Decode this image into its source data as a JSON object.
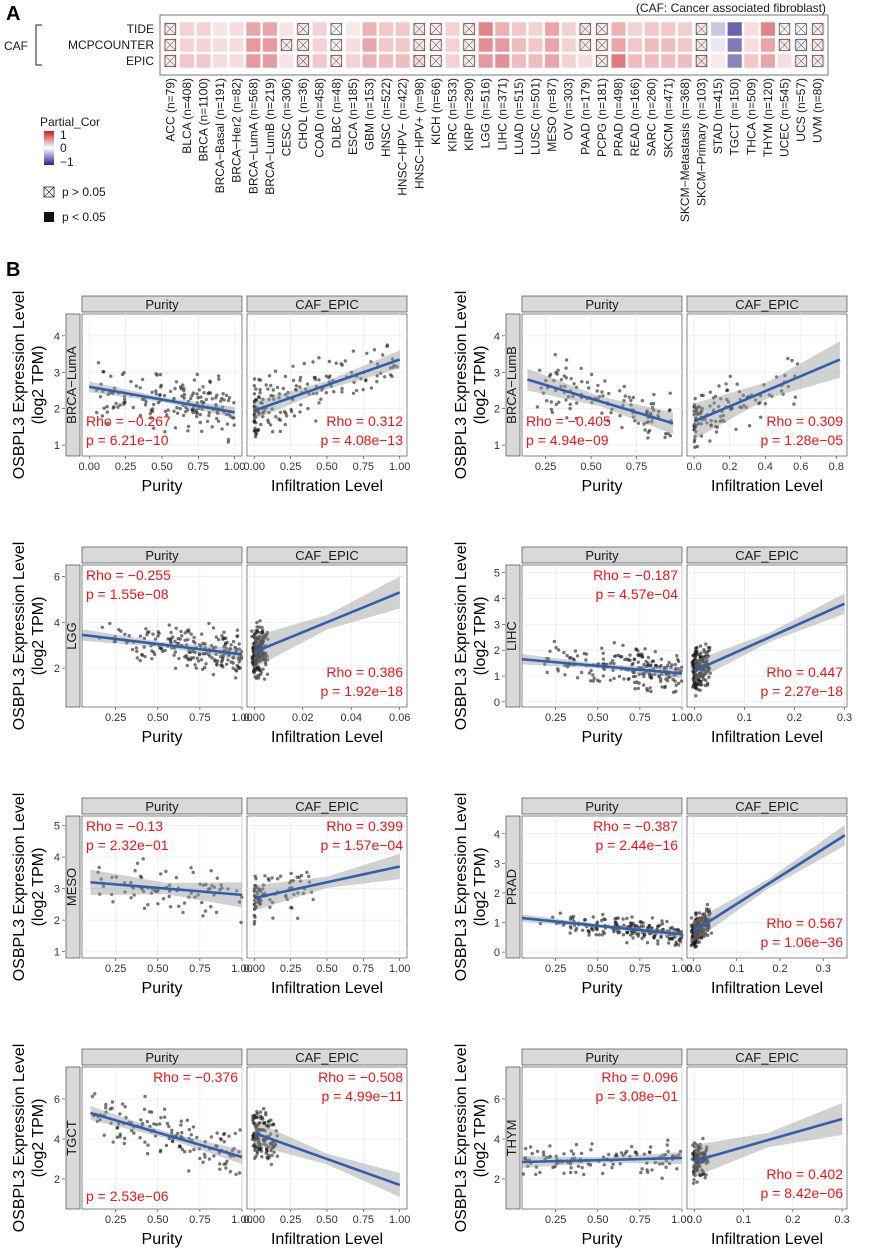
{
  "panel_labels": {
    "a": "A",
    "b": "B"
  },
  "chart_data": [
    {
      "type": "heatmap",
      "panel": "A",
      "note": "(CAF: Cancer associated fibroblast)",
      "group_label": "CAF",
      "rows": [
        "TIDE",
        "MCPCOUNTER",
        "EPIC"
      ],
      "columns": [
        "ACC (n=79)",
        "BLCA (n=408)",
        "BRCA (n=1100)",
        "BRCA−Basal (n=191)",
        "BRCA−Her2 (n=82)",
        "BRCA−LumA (n=568)",
        "BRCA−LumB (n=219)",
        "CESC (n=306)",
        "CHOL (n=36)",
        "COAD (n=458)",
        "DLBC (n=48)",
        "ESCA (n=185)",
        "GBM (n=153)",
        "HNSC (n=522)",
        "HNSC−HPV− (n=422)",
        "HNSC−HPV+ (n=98)",
        "KICH (n=66)",
        "KIRC (n=533)",
        "KIRP (n=290)",
        "LGG (n=516)",
        "LIHC (n=371)",
        "LUAD (n=515)",
        "LUSC (n=501)",
        "MESO (n=87)",
        "OV (n=303)",
        "PAAD (n=179)",
        "PCPG (n=181)",
        "PRAD (n=498)",
        "READ (n=166)",
        "SARC (n=260)",
        "SKCM (n=471)",
        "SKCM−Metastasis (n=368)",
        "SKCM−Primary (n=103)",
        "STAD (n=415)",
        "TGCT (n=150)",
        "THCA (n=509)",
        "THYM (n=120)",
        "UCEC (n=545)",
        "UCS (n=57)",
        "UVM (n=80)"
      ],
      "values": [
        [
          0.1,
          0.2,
          0.2,
          0.12,
          0.15,
          0.4,
          0.4,
          0.12,
          0.1,
          0.2,
          -0.05,
          0.1,
          0.35,
          0.25,
          0.25,
          0.1,
          0.1,
          0.2,
          0.1,
          0.55,
          0.35,
          0.25,
          0.2,
          0.4,
          0.2,
          0.1,
          0.1,
          0.35,
          0.2,
          0.25,
          0.25,
          0.22,
          0.1,
          -0.25,
          -0.7,
          0.15,
          0.55,
          0.05,
          -0.05,
          0.1
        ],
        [
          0.1,
          0.2,
          0.2,
          0.15,
          0.15,
          0.45,
          0.45,
          0.1,
          0.1,
          0.2,
          0.05,
          0.15,
          0.4,
          0.25,
          0.25,
          0.1,
          0.1,
          0.2,
          0.1,
          0.5,
          0.45,
          0.3,
          0.25,
          0.4,
          0.2,
          0.1,
          0.1,
          0.4,
          0.25,
          0.3,
          0.3,
          0.25,
          0.1,
          -0.1,
          -0.6,
          0.15,
          0.4,
          0.1,
          -0.1,
          0.1
        ],
        [
          0.1,
          0.25,
          0.25,
          0.15,
          0.15,
          0.45,
          0.45,
          0.12,
          0.15,
          0.25,
          0.1,
          0.2,
          0.35,
          0.3,
          0.3,
          0.15,
          0.1,
          0.2,
          0.1,
          0.45,
          0.5,
          0.3,
          0.3,
          0.4,
          0.2,
          0.15,
          0.1,
          0.6,
          0.3,
          0.3,
          0.3,
          0.3,
          0.15,
          0.1,
          -0.55,
          0.25,
          0.4,
          0.15,
          0.1,
          0.1
        ]
      ],
      "not_significant": [
        [
          true,
          false,
          false,
          false,
          false,
          false,
          false,
          false,
          true,
          false,
          true,
          false,
          false,
          false,
          false,
          true,
          true,
          false,
          true,
          false,
          false,
          false,
          false,
          false,
          false,
          true,
          true,
          false,
          false,
          false,
          false,
          false,
          true,
          false,
          false,
          false,
          false,
          true,
          true,
          true
        ],
        [
          true,
          false,
          false,
          false,
          false,
          false,
          false,
          true,
          true,
          false,
          true,
          false,
          false,
          false,
          false,
          true,
          true,
          false,
          true,
          false,
          false,
          false,
          false,
          false,
          false,
          true,
          true,
          false,
          false,
          false,
          false,
          false,
          true,
          false,
          false,
          false,
          false,
          true,
          true,
          true
        ],
        [
          true,
          false,
          false,
          false,
          false,
          false,
          false,
          false,
          true,
          false,
          true,
          false,
          false,
          false,
          false,
          true,
          true,
          false,
          true,
          false,
          false,
          false,
          false,
          false,
          false,
          false,
          true,
          false,
          false,
          false,
          false,
          false,
          true,
          false,
          false,
          false,
          false,
          false,
          true,
          true
        ]
      ],
      "legend": {
        "title": "Partial_Cor",
        "max": "1",
        "mid": "0",
        "min": "−1",
        "ns": "p > 0.05",
        "sig": "p < 0.05"
      },
      "colors": {
        "positive": "#c81f27",
        "negative": "#2a2187",
        "neutral": "#ffffff",
        "outline": "#222222"
      }
    },
    {
      "type": "scatter",
      "panel": "B",
      "cancer": "BRCA−LumA",
      "ylabel": [
        "OSBPL3 Expression Level",
        "(log2 TPM)"
      ],
      "yticks": [
        "1",
        "2",
        "3",
        "4"
      ],
      "ylim": [
        0.7,
        4.6
      ],
      "facets": [
        {
          "strip": "Purity",
          "xlabel": "Purity",
          "xticks": [
            "0.00",
            "0.25",
            "0.50",
            "0.75",
            "1.00"
          ],
          "xlim": [
            -0.05,
            1.05
          ],
          "rho": "Rho = −0.267",
          "p": "p = 6.21e−10",
          "pos": "bl",
          "fit": [
            [
              0.0,
              2.6
            ],
            [
              1.0,
              1.9
            ]
          ],
          "band": 0.15,
          "dist": {
            "kind": "uniform",
            "lo": 0.05,
            "hi": 1.0,
            "ymin": 0.9,
            "ymax": 4.2,
            "n": 170
          }
        },
        {
          "strip": "CAF_EPIC",
          "xlabel": "Infiltration Level",
          "xticks": [
            "0.00",
            "0.25",
            "0.50",
            "0.75",
            "1.00"
          ],
          "xlim": [
            -0.05,
            1.05
          ],
          "rho": "Rho = 0.312",
          "p": "p = 4.08e−13",
          "pos": "br",
          "fit": [
            [
              0.0,
              1.95
            ],
            [
              1.0,
              3.35
            ]
          ],
          "band": 0.25,
          "dist": {
            "kind": "skew",
            "lo": 0.0,
            "hi": 1.0,
            "ymin": 0.9,
            "ymax": 4.2,
            "n": 170
          }
        }
      ]
    },
    {
      "type": "scatter",
      "panel": "B",
      "cancer": "BRCA−LumB",
      "ylabel": [
        "OSBPL3 Expression Level",
        "(log2 TPM)"
      ],
      "yticks": [
        "1",
        "2",
        "3",
        "4"
      ],
      "ylim": [
        0.7,
        4.6
      ],
      "facets": [
        {
          "strip": "Purity",
          "xlabel": "Purity",
          "xticks": [
            "0.25",
            "0.50",
            "0.75"
          ],
          "xlim": [
            0.12,
            1.0
          ],
          "rho": "Rho = −0.405",
          "p": "p = 4.94e−09",
          "pos": "bl",
          "fit": [
            [
              0.15,
              2.8
            ],
            [
              0.95,
              1.6
            ]
          ],
          "band": 0.3,
          "dist": {
            "kind": "uniform",
            "lo": 0.2,
            "hi": 0.95,
            "ymin": 0.9,
            "ymax": 4.2,
            "n": 120
          }
        },
        {
          "strip": "CAF_EPIC",
          "xlabel": "Infiltration Level",
          "xticks": [
            "0.0",
            "0.2",
            "0.4",
            "0.6",
            "0.8"
          ],
          "xlim": [
            -0.04,
            0.86
          ],
          "rho": "Rho = 0.309",
          "p": "p = 1.28e−05",
          "pos": "br",
          "fit": [
            [
              0.0,
              1.65
            ],
            [
              0.82,
              3.35
            ]
          ],
          "band": 0.5,
          "dist": {
            "kind": "skew",
            "lo": 0.0,
            "hi": 0.6,
            "ymin": 0.9,
            "ymax": 4.2,
            "n": 120
          }
        }
      ]
    },
    {
      "type": "scatter",
      "panel": "B",
      "cancer": "LGG",
      "ylabel": [
        "OSBPL3 Expression Level",
        "(log2 TPM)"
      ],
      "yticks": [
        "2",
        "4",
        "6"
      ],
      "ylim": [
        0.3,
        6.5
      ],
      "facets": [
        {
          "strip": "Purity",
          "xlabel": "Purity",
          "xticks": [
            "0.25",
            "0.50",
            "0.75",
            "1.00"
          ],
          "xlim": [
            0.05,
            1.0
          ],
          "rho": "Rho = −0.255",
          "p": "p = 1.55e−08",
          "pos": "tl",
          "fit": [
            [
              0.05,
              3.45
            ],
            [
              1.0,
              2.6
            ]
          ],
          "band": 0.25,
          "dist": {
            "kind": "right",
            "lo": 0.1,
            "hi": 1.0,
            "ymin": 1.0,
            "ymax": 5.0,
            "n": 200
          }
        },
        {
          "strip": "CAF_EPIC",
          "xlabel": "Infiltration Level",
          "xticks": [
            "0.00",
            "0.02",
            "0.04",
            "0.06"
          ],
          "xlim": [
            -0.003,
            0.063
          ],
          "rho": "Rho = 0.386",
          "p": "p = 1.92e−18",
          "pos": "br",
          "fit": [
            [
              0.0,
              2.7
            ],
            [
              0.06,
              5.3
            ]
          ],
          "band": 0.7,
          "dist": {
            "kind": "zero",
            "lo": 0.0,
            "hi": 0.005,
            "ymin": 0.5,
            "ymax": 5.5,
            "n": 200
          }
        }
      ]
    },
    {
      "type": "scatter",
      "panel": "B",
      "cancer": "LIHC",
      "ylabel": [
        "OSBPL3 Expression Level",
        "(log2 TPM)"
      ],
      "yticks": [
        "0",
        "1",
        "2",
        "3",
        "4",
        "5"
      ],
      "ylim": [
        -0.2,
        5.3
      ],
      "facets": [
        {
          "strip": "Purity",
          "xlabel": "Purity",
          "xticks": [
            "0.25",
            "0.50",
            "0.75",
            "1.00"
          ],
          "xlim": [
            0.05,
            1.0
          ],
          "rho": "Rho = −0.187",
          "p": "p = 4.57e−04",
          "pos": "tr",
          "fit": [
            [
              0.05,
              1.65
            ],
            [
              1.0,
              1.1
            ]
          ],
          "band": 0.2,
          "dist": {
            "kind": "right",
            "lo": 0.1,
            "hi": 1.0,
            "ymin": 0.0,
            "ymax": 3.5,
            "n": 200
          }
        },
        {
          "strip": "CAF_EPIC",
          "xlabel": "Infiltration Level",
          "xticks": [
            "0.0",
            "0.1",
            "0.2",
            "0.3"
          ],
          "xlim": [
            -0.015,
            0.305
          ],
          "rho": "Rho = 0.447",
          "p": "p = 2.27e−18",
          "pos": "br",
          "fit": [
            [
              0.0,
              1.2
            ],
            [
              0.3,
              3.8
            ]
          ],
          "band": 0.4,
          "dist": {
            "kind": "zero",
            "lo": 0.0,
            "hi": 0.03,
            "ymin": 0.0,
            "ymax": 3.5,
            "n": 200
          }
        }
      ]
    },
    {
      "type": "scatter",
      "panel": "B",
      "cancer": "MESO",
      "ylabel": [
        "OSBPL3 Expression Level",
        "(log2 TPM)"
      ],
      "yticks": [
        "1",
        "2",
        "3",
        "4",
        "5"
      ],
      "ylim": [
        0.8,
        5.3
      ],
      "facets": [
        {
          "strip": "Purity",
          "xlabel": "Purity",
          "xticks": [
            "0.25",
            "0.50",
            "0.75",
            "1.00"
          ],
          "xlim": [
            0.05,
            1.0
          ],
          "rho": "Rho = −0.13",
          "p": "p = 2.32e−01",
          "pos": "tl",
          "fit": [
            [
              0.1,
              3.2
            ],
            [
              1.0,
              2.8
            ]
          ],
          "band": 0.4,
          "dist": {
            "kind": "uniform",
            "lo": 0.1,
            "hi": 1.0,
            "ymin": 1.3,
            "ymax": 5.0,
            "n": 80
          }
        },
        {
          "strip": "CAF_EPIC",
          "xlabel": "Infiltration Level",
          "xticks": [
            "0.00",
            "0.25",
            "0.50",
            "0.75",
            "1.00"
          ],
          "xlim": [
            -0.05,
            1.05
          ],
          "rho": "Rho = 0.399",
          "p": "p = 1.57e−04",
          "pos": "tr",
          "fit": [
            [
              0.0,
              2.7
            ],
            [
              1.0,
              3.7
            ]
          ],
          "band": 0.4,
          "dist": {
            "kind": "skew",
            "lo": 0.0,
            "hi": 0.45,
            "ymin": 1.3,
            "ymax": 4.8,
            "n": 80
          }
        }
      ]
    },
    {
      "type": "scatter",
      "panel": "B",
      "cancer": "PRAD",
      "ylabel": [
        "OSBPL3 Expression Level",
        "(log2 TPM)"
      ],
      "yticks": [
        "0",
        "1",
        "2",
        "3",
        "4"
      ],
      "ylim": [
        -0.2,
        4.6
      ],
      "facets": [
        {
          "strip": "Purity",
          "xlabel": "Purity",
          "xticks": [
            "0.25",
            "0.50",
            "0.75",
            "1.00"
          ],
          "xlim": [
            0.05,
            1.0
          ],
          "rho": "Rho = −0.387",
          "p": "p = 2.44e−16",
          "pos": "tr",
          "fit": [
            [
              0.05,
              1.15
            ],
            [
              1.0,
              0.6
            ]
          ],
          "band": 0.12,
          "dist": {
            "kind": "right",
            "lo": 0.1,
            "hi": 1.0,
            "ymin": 0.2,
            "ymax": 2.0,
            "n": 200
          }
        },
        {
          "strip": "CAF_EPIC",
          "xlabel": "Infiltration Level",
          "xticks": [
            "0.0",
            "0.1",
            "0.2",
            "0.3"
          ],
          "xlim": [
            -0.015,
            0.355
          ],
          "rho": "Rho = 0.567",
          "p": "p = 1.06e−36",
          "pos": "br",
          "fit": [
            [
              0.0,
              0.7
            ],
            [
              0.35,
              3.95
            ]
          ],
          "band": 0.35,
          "dist": {
            "kind": "zero",
            "lo": 0.0,
            "hi": 0.04,
            "ymin": 0.1,
            "ymax": 2.5,
            "n": 200
          }
        }
      ]
    },
    {
      "type": "scatter",
      "panel": "B",
      "cancer": "TGCT",
      "ylabel": [
        "OSBPL3 Expression Level",
        "(log2 TPM)"
      ],
      "yticks": [
        "2",
        "4",
        "6"
      ],
      "ylim": [
        0.5,
        7.6
      ],
      "facets": [
        {
          "strip": "Purity",
          "xlabel": "Purity",
          "xticks": [
            "0.25",
            "0.50",
            "0.75",
            "1.00"
          ],
          "xlim": [
            0.05,
            1.0
          ],
          "rho": "Rho = −0.376",
          "p": "p = 2.53e−06",
          "pos": "split",
          "fit": [
            [
              0.1,
              5.3
            ],
            [
              1.0,
              3.1
            ]
          ],
          "band": 0.35,
          "dist": {
            "kind": "uniform",
            "lo": 0.1,
            "hi": 1.0,
            "ymin": 1.5,
            "ymax": 7.3,
            "n": 140
          }
        },
        {
          "strip": "CAF_EPIC",
          "xlabel": "Infiltration Level",
          "xticks": [
            "0.00",
            "0.25",
            "0.50",
            "0.75",
            "1.00"
          ],
          "xlim": [
            -0.05,
            1.05
          ],
          "rho": "Rho = −0.508",
          "p": "p = 4.99e−11",
          "pos": "tr",
          "fit": [
            [
              0.0,
              4.3
            ],
            [
              1.0,
              1.7
            ]
          ],
          "band": 0.6,
          "dist": {
            "kind": "zero",
            "lo": 0.0,
            "hi": 0.15,
            "ymin": 1.3,
            "ymax": 6.8,
            "n": 140
          }
        }
      ]
    },
    {
      "type": "scatter",
      "panel": "B",
      "cancer": "THYM",
      "ylabel": [
        "OSBPL3 Expression Level",
        "(log2 TPM)"
      ],
      "yticks": [
        "2",
        "4",
        "6"
      ],
      "ylim": [
        0.5,
        7.6
      ],
      "facets": [
        {
          "strip": "Purity",
          "xlabel": "Purity",
          "xticks": [
            "0.25",
            "0.50",
            "0.75",
            "1.00"
          ],
          "xlim": [
            0.05,
            1.0
          ],
          "rho": "Rho = 0.096",
          "p": "p = 3.08e−01",
          "pos": "tr",
          "fit": [
            [
              0.05,
              2.85
            ],
            [
              1.0,
              3.05
            ]
          ],
          "band": 0.3,
          "dist": {
            "kind": "uniform",
            "lo": 0.05,
            "hi": 1.0,
            "ymin": 1.0,
            "ymax": 4.5,
            "n": 110
          }
        },
        {
          "strip": "CAF_EPIC",
          "xlabel": "Infiltration Level",
          "xticks": [
            "0.0",
            "0.1",
            "0.2",
            "0.3"
          ],
          "xlim": [
            -0.015,
            0.31
          ],
          "rho": "Rho = 0.402",
          "p": "p = 8.42e−06",
          "pos": "br",
          "fit": [
            [
              0.0,
              2.9
            ],
            [
              0.3,
              5.0
            ]
          ],
          "band": 0.8,
          "dist": {
            "kind": "zero",
            "lo": 0.0,
            "hi": 0.03,
            "ymin": 1.0,
            "ymax": 5.0,
            "n": 110
          }
        }
      ]
    }
  ]
}
